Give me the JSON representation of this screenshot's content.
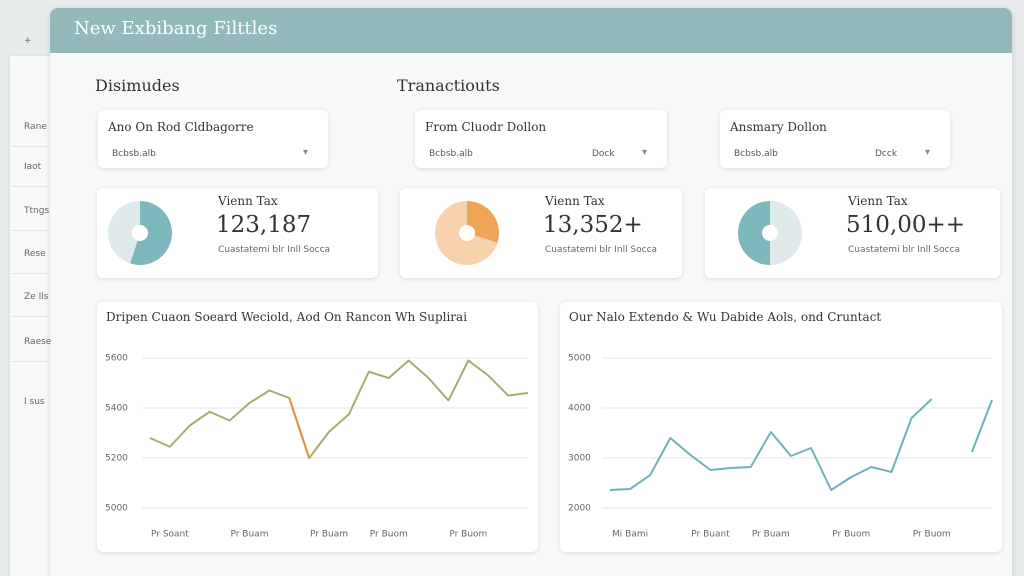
{
  "sidebar": {
    "items": [
      "+",
      "Rane",
      "Iaot",
      "Ttngs",
      "Rese",
      "Ze Ils",
      "Raese",
      "I sus"
    ]
  },
  "header": {
    "title": "New Exbibang Filttles"
  },
  "sections": [
    "Disimudes",
    "Tranactiouts"
  ],
  "filters": [
    {
      "label": "Ano On Rod Cldbagorre",
      "value": "Bcbsb.alb",
      "caret": "▾"
    },
    {
      "label": "From Cluodr Dollon",
      "value": "Bcbsb.alb",
      "action": "Dock",
      "caret": "▾"
    },
    {
      "label": "Ansmary Dollon",
      "value": "Bcbsb.alb",
      "action": "Dcck",
      "caret": "▾"
    }
  ],
  "stats": [
    {
      "label": "Vienn Tax",
      "value": "123,187",
      "caption": "Cuastatemi blr Inll Socca",
      "pie": {
        "values": [
          55,
          45
        ],
        "colors": [
          "#7fb8bc",
          "#dfeaeb"
        ]
      }
    },
    {
      "label": "Vienn Tax",
      "value": "13,352+",
      "caption": "Cuastatemi blr Inll Socca",
      "pie": {
        "values": [
          30,
          70
        ],
        "colors": [
          "#f0a458",
          "#f8d2ad"
        ]
      }
    },
    {
      "label": "Vienn Tax",
      "value": "510,00++",
      "caption": "Cuastatemi blr Inll Socca",
      "pie": {
        "values": [
          50,
          50
        ],
        "colors": [
          "#dfeaeb",
          "#7fb8bc"
        ]
      }
    }
  ],
  "charts": [
    {
      "type": "line",
      "title": "Dripen Cuaon Soeard Weciold, Aod On Rancon Wh Suplirai",
      "categories": [
        null,
        "Pr Soant",
        null,
        null,
        null,
        "Pr Buam",
        null,
        null,
        null,
        "Pr Buam",
        null,
        null,
        "Pr Buom",
        null,
        null,
        null,
        "Pr Buom",
        null,
        null,
        null
      ],
      "values": [
        5280,
        5245,
        5330,
        5385,
        5350,
        5420,
        5470,
        5440,
        5200,
        5305,
        5375,
        5545,
        5520,
        5590,
        5520,
        5430,
        5590,
        5530,
        5450,
        5460
      ],
      "color": "#a3ad72",
      "highlight_index": 7,
      "highlight_color": "#e8923e",
      "ylim": [
        5000,
        5600
      ],
      "yticks": [
        5000,
        5200,
        5400,
        5600
      ],
      "grid": true
    },
    {
      "type": "line",
      "title": "Our Nalo Extendo & Wu Dabide Aols, ond Cruntact",
      "categories": [
        null,
        "Mi Bami",
        null,
        null,
        null,
        "Pr Buant",
        null,
        null,
        "Pr Buam",
        null,
        null,
        null,
        "Pr Buom",
        null,
        null,
        null,
        "Pr Buom",
        null,
        null,
        null
      ],
      "values": [
        2360,
        2380,
        2660,
        3400,
        3060,
        2760,
        2800,
        2820,
        3520,
        3040,
        3200,
        2360,
        2620,
        2820,
        2720,
        3800,
        4180,
        null,
        3120,
        4160
      ],
      "color": "#6fb3b8",
      "ylim": [
        2000,
        5000
      ],
      "yticks": [
        2000,
        3000,
        4000,
        5000
      ],
      "grid": true
    }
  ]
}
